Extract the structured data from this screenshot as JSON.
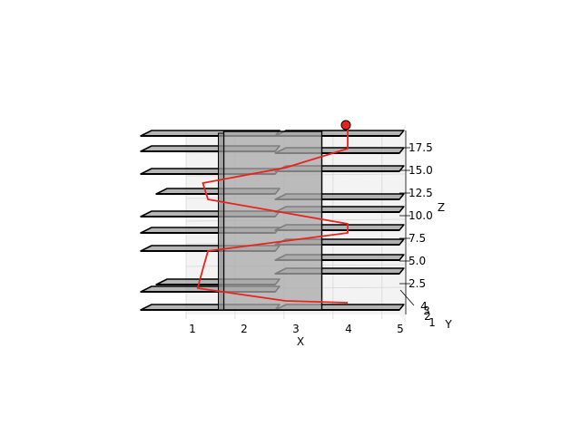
{
  "chart_data": {
    "type": "3d-line",
    "title": "",
    "xlabel": "X",
    "ylabel": "Y",
    "zlabel": "Z",
    "xlim": [
      0,
      5
    ],
    "zlim": [
      0,
      19
    ],
    "x_ticks": [
      "1",
      "2",
      "3",
      "4",
      "5"
    ],
    "y_ticks": [
      "1",
      "2",
      "3",
      "4"
    ],
    "z_ticks": [
      "2.5",
      "5.0",
      "7.5",
      "10.0",
      "12.5",
      "15.0",
      "17.5"
    ],
    "grid": true,
    "colors": {
      "path": "#e8231c",
      "marker": "#e8231c",
      "plate": "#9e9e9e",
      "column": "#a8a8a8",
      "edge": "#000000"
    },
    "plates": [
      {
        "x0": 0.0,
        "x1": 2.6,
        "z": 0.0
      },
      {
        "x0": 2.6,
        "x1": 5.0,
        "z": 0.0
      },
      {
        "x0": 0.0,
        "x1": 2.6,
        "z": 2.0
      },
      {
        "x0": 0.3,
        "x1": 2.6,
        "z": 2.8
      },
      {
        "x0": 2.6,
        "x1": 5.0,
        "z": 4.0
      },
      {
        "x0": 2.6,
        "x1": 5.0,
        "z": 5.5
      },
      {
        "x0": 0.0,
        "x1": 2.6,
        "z": 6.5
      },
      {
        "x0": 2.6,
        "x1": 5.0,
        "z": 7.2
      },
      {
        "x0": 0.0,
        "x1": 2.6,
        "z": 8.5
      },
      {
        "x0": 2.6,
        "x1": 5.0,
        "z": 8.8
      },
      {
        "x0": 0.0,
        "x1": 2.6,
        "z": 10.3
      },
      {
        "x0": 2.6,
        "x1": 5.0,
        "z": 10.8
      },
      {
        "x0": 2.6,
        "x1": 5.0,
        "z": 12.2
      },
      {
        "x0": 0.3,
        "x1": 2.6,
        "z": 12.8
      },
      {
        "x0": 0.0,
        "x1": 2.6,
        "z": 15.0
      },
      {
        "x0": 2.6,
        "x1": 5.0,
        "z": 15.3
      },
      {
        "x0": 2.6,
        "x1": 5.0,
        "z": 17.3
      },
      {
        "x0": 0.0,
        "x1": 2.6,
        "z": 17.5
      },
      {
        "x0": 2.6,
        "x1": 5.0,
        "z": 19.2
      },
      {
        "x0": 0.0,
        "x1": 2.6,
        "z": 19.2
      }
    ],
    "column": {
      "x0": 1.5,
      "x1": 3.5,
      "z0": 0,
      "z1": 19.7
    },
    "path": [
      {
        "x": 4.0,
        "z": 0.8
      },
      {
        "x": 2.8,
        "z": 1.0
      },
      {
        "x": 1.1,
        "z": 2.4
      },
      {
        "x": 1.2,
        "z": 4.5
      },
      {
        "x": 1.3,
        "z": 6.5
      },
      {
        "x": 4.0,
        "z": 8.5
      },
      {
        "x": 4.0,
        "z": 9.5
      },
      {
        "x": 2.8,
        "z": 10.7
      },
      {
        "x": 1.3,
        "z": 12.2
      },
      {
        "x": 1.2,
        "z": 14.0
      },
      {
        "x": 2.8,
        "z": 15.7
      },
      {
        "x": 4.0,
        "z": 17.8
      },
      {
        "x": 4.0,
        "z": 20.0
      }
    ],
    "endpoint": {
      "x": 4.0,
      "z": 20.0
    }
  }
}
